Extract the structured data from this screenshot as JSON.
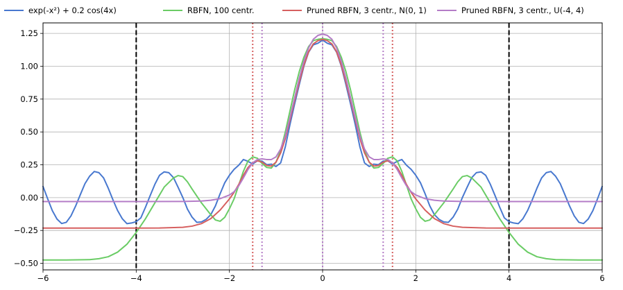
{
  "chart_data": {
    "type": "line",
    "title": "",
    "xlabel": "",
    "ylabel": "",
    "xlim": [
      -6,
      6
    ],
    "ylim": [
      -0.55,
      1.33
    ],
    "xticks": [
      -6,
      -4,
      -2,
      0,
      2,
      4,
      6
    ],
    "xtick_labels": [
      "−6",
      "−4",
      "−2",
      "0",
      "2",
      "4",
      "6"
    ],
    "yticks": [
      -0.5,
      -0.25,
      0,
      0.25,
      0.5,
      0.75,
      1,
      1.25
    ],
    "ytick_labels": [
      "−0.50",
      "−0.25",
      "0.00",
      "0.25",
      "0.50",
      "0.75",
      "1.00",
      "1.25"
    ],
    "grid": true,
    "legend_position": "top",
    "series": [
      {
        "name": "exp(-x²) + 0.2 cos(4x)",
        "color": "#4878cf",
        "x": [
          -6,
          -5.9,
          -5.8,
          -5.7,
          -5.6,
          -5.5,
          -5.4,
          -5.3,
          -5.2,
          -5.1,
          -5,
          -4.9,
          -4.8,
          -4.7,
          -4.6,
          -4.5,
          -4.4,
          -4.3,
          -4.2,
          -4.1,
          -4,
          -3.9,
          -3.8,
          -3.7,
          -3.6,
          -3.5,
          -3.4,
          -3.3,
          -3.2,
          -3.1,
          -3,
          -2.9,
          -2.8,
          -2.7,
          -2.6,
          -2.5,
          -2.4,
          -2.3,
          -2.2,
          -2.1,
          -2,
          -1.9,
          -1.8,
          -1.7,
          -1.6,
          -1.5,
          -1.4,
          -1.3,
          -1.2,
          -1.1,
          -1,
          -0.9,
          -0.8,
          -0.7,
          -0.6,
          -0.5,
          -0.4,
          -0.3,
          -0.2,
          -0.1,
          0,
          0.1,
          0.2,
          0.3,
          0.4,
          0.5,
          0.6,
          0.7,
          0.8,
          0.9,
          1,
          1.1,
          1.2,
          1.3,
          1.4,
          1.5,
          1.6,
          1.7,
          1.8,
          1.9,
          2,
          2.1,
          2.2,
          2.3,
          2.4,
          2.5,
          2.6,
          2.7,
          2.8,
          2.9,
          3,
          3.1,
          3.2,
          3.3,
          3.4,
          3.5,
          3.6,
          3.7,
          3.8,
          3.9,
          4,
          4.1,
          4.2,
          4.3,
          4.4,
          4.5,
          4.6,
          4.7,
          4.8,
          4.9,
          5,
          5.1,
          5.2,
          5.3,
          5.4,
          5.5,
          5.6,
          5.7,
          5.8,
          5.9,
          6
        ],
        "y": [
          0.085,
          -0.009,
          -0.099,
          -0.163,
          -0.197,
          -0.188,
          -0.139,
          -0.064,
          0.022,
          0.106,
          0.163,
          0.199,
          0.19,
          0.15,
          0.072,
          -0.016,
          -0.098,
          -0.16,
          -0.198,
          -0.193,
          -0.183,
          -0.154,
          -0.072,
          0.016,
          0.101,
          0.17,
          0.196,
          0.19,
          0.152,
          0.078,
          0.001,
          -0.088,
          -0.149,
          -0.188,
          -0.185,
          -0.166,
          -0.13,
          -0.063,
          0.029,
          0.113,
          0.17,
          0.215,
          0.247,
          0.29,
          0.276,
          0.256,
          0.28,
          0.278,
          0.251,
          0.255,
          0.237,
          0.264,
          0.387,
          0.557,
          0.713,
          0.861,
          1.002,
          1.107,
          1.163,
          1.175,
          1.2,
          1.175,
          1.163,
          1.107,
          1.002,
          0.861,
          0.713,
          0.557,
          0.387,
          0.264,
          0.237,
          0.255,
          0.251,
          0.278,
          0.28,
          0.256,
          0.276,
          0.29,
          0.247,
          0.215,
          0.17,
          0.113,
          0.029,
          -0.063,
          -0.13,
          -0.166,
          -0.185,
          -0.188,
          -0.149,
          -0.088,
          0.001,
          0.078,
          0.152,
          0.19,
          0.196,
          0.17,
          0.101,
          0.016,
          -0.072,
          -0.154,
          -0.183,
          -0.193,
          -0.198,
          -0.16,
          -0.098,
          -0.016,
          0.072,
          0.15,
          0.19,
          0.199,
          0.163,
          0.106,
          0.022,
          -0.064,
          -0.139,
          -0.188,
          -0.197,
          -0.163,
          -0.099,
          -0.009,
          0.085
        ]
      },
      {
        "name": "RBFN, 100 centr.",
        "color": "#6acc65",
        "x": [
          -6,
          -5.5,
          -5,
          -4.8,
          -4.6,
          -4.4,
          -4.2,
          -4,
          -3.8,
          -3.6,
          -3.4,
          -3.2,
          -3.1,
          -3,
          -2.9,
          -2.8,
          -2.6,
          -2.4,
          -2.3,
          -2.2,
          -2.1,
          -2,
          -1.9,
          -1.8,
          -1.7,
          -1.6,
          -1.5,
          -1.4,
          -1.3,
          -1.2,
          -1.1,
          -1,
          -0.9,
          -0.8,
          -0.7,
          -0.6,
          -0.5,
          -0.4,
          -0.3,
          -0.2,
          -0.1,
          0,
          0.1,
          0.2,
          0.3,
          0.4,
          0.5,
          0.6,
          0.7,
          0.8,
          0.9,
          1,
          1.1,
          1.2,
          1.3,
          1.4,
          1.5,
          1.6,
          1.7,
          1.8,
          1.9,
          2,
          2.1,
          2.2,
          2.3,
          2.4,
          2.6,
          2.8,
          2.9,
          3,
          3.1,
          3.2,
          3.4,
          3.6,
          3.8,
          4,
          4.2,
          4.4,
          4.6,
          4.8,
          5,
          5.5,
          6
        ],
        "y": [
          -0.475,
          -0.475,
          -0.472,
          -0.465,
          -0.45,
          -0.415,
          -0.355,
          -0.265,
          -0.16,
          -0.04,
          0.08,
          0.15,
          0.168,
          0.16,
          0.12,
          0.065,
          -0.04,
          -0.13,
          -0.17,
          -0.18,
          -0.15,
          -0.085,
          -0.01,
          0.095,
          0.2,
          0.28,
          0.31,
          0.3,
          0.26,
          0.23,
          0.225,
          0.27,
          0.36,
          0.5,
          0.66,
          0.82,
          0.96,
          1.07,
          1.15,
          1.195,
          1.205,
          1.21,
          1.205,
          1.195,
          1.15,
          1.07,
          0.96,
          0.82,
          0.66,
          0.5,
          0.36,
          0.27,
          0.225,
          0.23,
          0.26,
          0.3,
          0.31,
          0.28,
          0.2,
          0.095,
          -0.01,
          -0.085,
          -0.15,
          -0.18,
          -0.17,
          -0.13,
          -0.04,
          0.065,
          0.12,
          0.16,
          0.168,
          0.15,
          0.08,
          -0.04,
          -0.16,
          -0.265,
          -0.355,
          -0.415,
          -0.45,
          -0.465,
          -0.472,
          -0.475,
          -0.475
        ]
      },
      {
        "name": "Pruned RBFN, 3 centr., N(0, 1)",
        "color": "#d65f5f",
        "x": [
          -6,
          -4,
          -3.5,
          -3,
          -2.8,
          -2.6,
          -2.4,
          -2.2,
          -2,
          -1.9,
          -1.8,
          -1.7,
          -1.6,
          -1.5,
          -1.4,
          -1.3,
          -1.2,
          -1.1,
          -1,
          -0.9,
          -0.8,
          -0.7,
          -0.6,
          -0.5,
          -0.4,
          -0.3,
          -0.2,
          -0.1,
          0,
          0.1,
          0.2,
          0.3,
          0.4,
          0.5,
          0.6,
          0.7,
          0.8,
          0.9,
          1,
          1.1,
          1.2,
          1.3,
          1.4,
          1.5,
          1.6,
          1.7,
          1.8,
          1.9,
          2,
          2.2,
          2.4,
          2.6,
          2.8,
          3,
          3.5,
          4,
          6
        ],
        "y": [
          -0.232,
          -0.232,
          -0.231,
          -0.226,
          -0.217,
          -0.198,
          -0.16,
          -0.095,
          -0.01,
          0.04,
          0.1,
          0.17,
          0.23,
          0.265,
          0.28,
          0.27,
          0.245,
          0.24,
          0.27,
          0.34,
          0.45,
          0.59,
          0.74,
          0.88,
          1.01,
          1.11,
          1.17,
          1.195,
          1.205,
          1.195,
          1.17,
          1.11,
          1.01,
          0.88,
          0.74,
          0.59,
          0.45,
          0.34,
          0.27,
          0.24,
          0.245,
          0.27,
          0.28,
          0.265,
          0.23,
          0.17,
          0.1,
          0.04,
          -0.01,
          -0.095,
          -0.16,
          -0.198,
          -0.217,
          -0.226,
          -0.231,
          -0.232,
          -0.232
        ]
      },
      {
        "name": "Pruned RBFN, 3 centr., U(-4, 4)",
        "color": "#b47cc7",
        "x": [
          -6,
          -4,
          -3,
          -2.6,
          -2.4,
          -2.2,
          -2,
          -1.9,
          -1.8,
          -1.7,
          -1.6,
          -1.5,
          -1.4,
          -1.3,
          -1.2,
          -1.1,
          -1,
          -0.9,
          -0.8,
          -0.7,
          -0.6,
          -0.5,
          -0.4,
          -0.3,
          -0.2,
          -0.1,
          0,
          0.1,
          0.2,
          0.3,
          0.4,
          0.5,
          0.6,
          0.7,
          0.8,
          0.9,
          1,
          1.1,
          1.2,
          1.3,
          1.4,
          1.5,
          1.6,
          1.7,
          1.8,
          1.9,
          2,
          2.2,
          2.4,
          2.6,
          3,
          4,
          6
        ],
        "y": [
          -0.03,
          -0.03,
          -0.029,
          -0.026,
          -0.02,
          -0.008,
          0.02,
          0.045,
          0.09,
          0.15,
          0.215,
          0.265,
          0.29,
          0.295,
          0.29,
          0.29,
          0.31,
          0.37,
          0.47,
          0.61,
          0.76,
          0.91,
          1.04,
          1.14,
          1.205,
          1.235,
          1.245,
          1.235,
          1.205,
          1.14,
          1.04,
          0.91,
          0.76,
          0.61,
          0.47,
          0.37,
          0.31,
          0.29,
          0.29,
          0.295,
          0.29,
          0.265,
          0.215,
          0.15,
          0.09,
          0.045,
          0.02,
          -0.008,
          -0.02,
          -0.026,
          -0.029,
          -0.03,
          -0.03
        ]
      }
    ],
    "vlines": [
      {
        "x": -4,
        "color": "#000000",
        "style": "dashed"
      },
      {
        "x": 4,
        "color": "#000000",
        "style": "dashed"
      },
      {
        "x": -1.5,
        "color": "#d65f5f",
        "style": "dotted"
      },
      {
        "x": 0,
        "color": "#d65f5f",
        "style": "dotted"
      },
      {
        "x": 1.5,
        "color": "#d65f5f",
        "style": "dotted"
      },
      {
        "x": -1.3,
        "color": "#b47cc7",
        "style": "dotted"
      },
      {
        "x": 0,
        "color": "#b47cc7",
        "style": "dotted"
      },
      {
        "x": 1.3,
        "color": "#b47cc7",
        "style": "dotted"
      }
    ]
  }
}
